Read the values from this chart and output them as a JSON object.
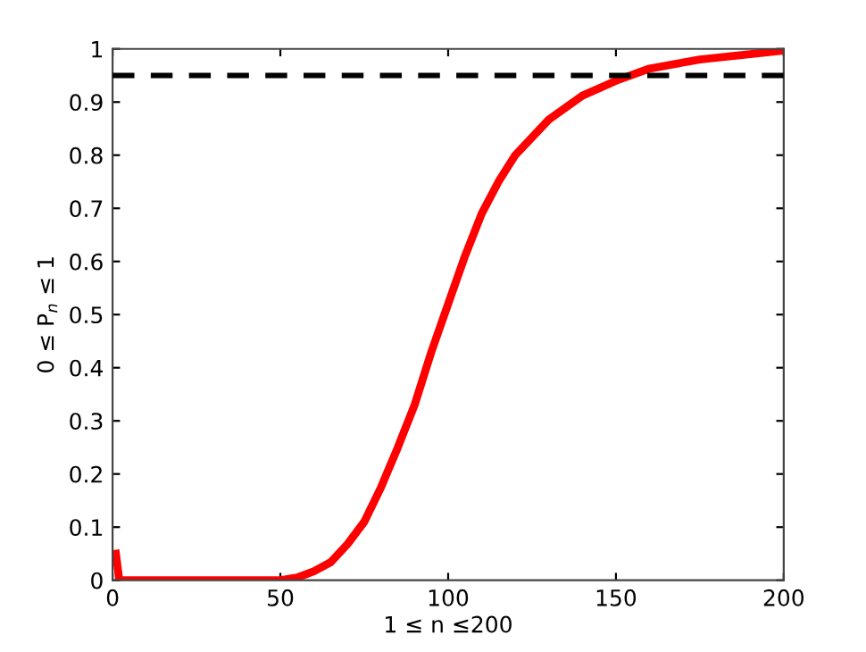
{
  "chart_data": {
    "type": "line",
    "xlabel": "1 ≤ n ≤200",
    "ylabel": "0 ≤ P$_{n}$ ≤ 1",
    "x": [
      1,
      2,
      10,
      20,
      30,
      40,
      50,
      55,
      60,
      65,
      70,
      75,
      80,
      85,
      90,
      95,
      100,
      105,
      110,
      115,
      120,
      130,
      140,
      150,
      160,
      175,
      190,
      200
    ],
    "series": [
      {
        "color": "#ff0000",
        "values": [
          0.05,
          0,
          0,
          0,
          0,
          0,
          0,
          0.005,
          0.017,
          0.034,
          0.068,
          0.11,
          0.175,
          0.25,
          0.33,
          0.43,
          0.52,
          0.61,
          0.69,
          0.75,
          0.8,
          0.867,
          0.912,
          0.94,
          0.963,
          0.98,
          0.99,
          0.997
        ]
      }
    ],
    "ref_lines": [
      {
        "axis": "y",
        "value": 0.95,
        "color": "#000000",
        "line_style": "dashed"
      }
    ],
    "xlim": [
      0,
      200
    ],
    "ylim": [
      0,
      1
    ],
    "xticks": [
      0,
      50,
      100,
      150,
      200
    ],
    "yticks": [
      0,
      0.1,
      0.2,
      0.3,
      0.4,
      0.5,
      0.6,
      0.7,
      0.8,
      0.9,
      1
    ],
    "grid": false,
    "legend": false,
    "marker": "none",
    "line_style": "solid"
  }
}
